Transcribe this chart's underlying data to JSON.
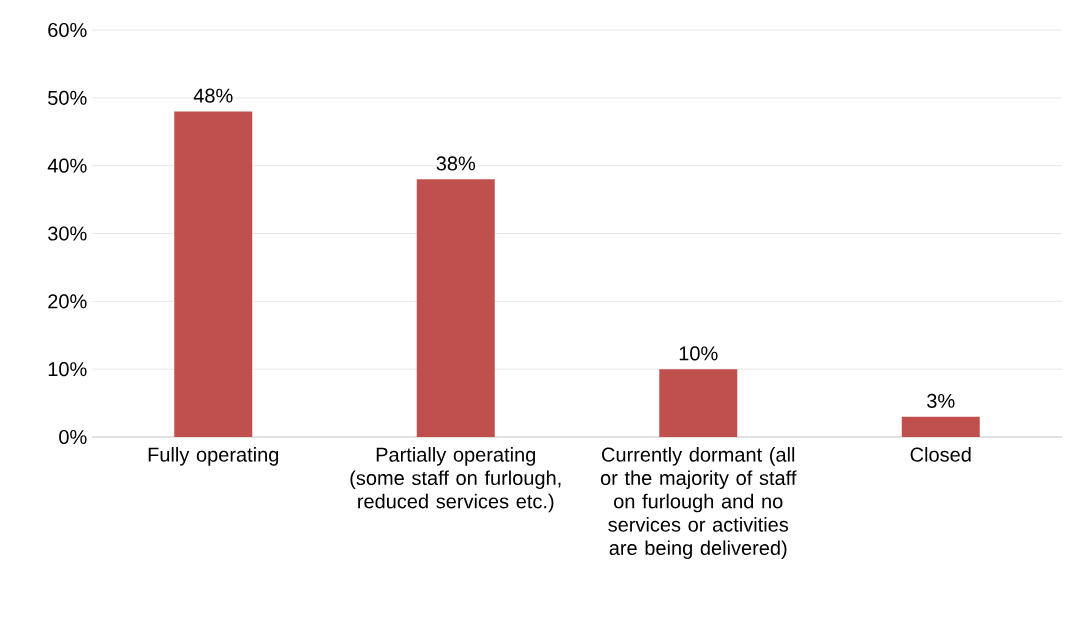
{
  "chart_data": {
    "type": "bar",
    "categories": [
      "Fully operating",
      "Partially operating (some staff on furlough, reduced services etc.)",
      "Currently dormant (all or the majority of staff on furlough and no services or activities are being delivered)",
      "Closed"
    ],
    "values": [
      48,
      38,
      10,
      3
    ],
    "value_labels": [
      "48%",
      "38%",
      "10%",
      "3%"
    ],
    "color": "#c0504d",
    "ylim": [
      0,
      60
    ],
    "yticks": [
      {
        "value": 0,
        "label": "0%"
      },
      {
        "value": 10,
        "label": "10%"
      },
      {
        "value": 20,
        "label": "20%"
      },
      {
        "value": 30,
        "label": "30%"
      },
      {
        "value": 40,
        "label": "40%"
      },
      {
        "value": 50,
        "label": "50%"
      },
      {
        "value": 60,
        "label": "60%"
      }
    ],
    "grid": "y"
  }
}
